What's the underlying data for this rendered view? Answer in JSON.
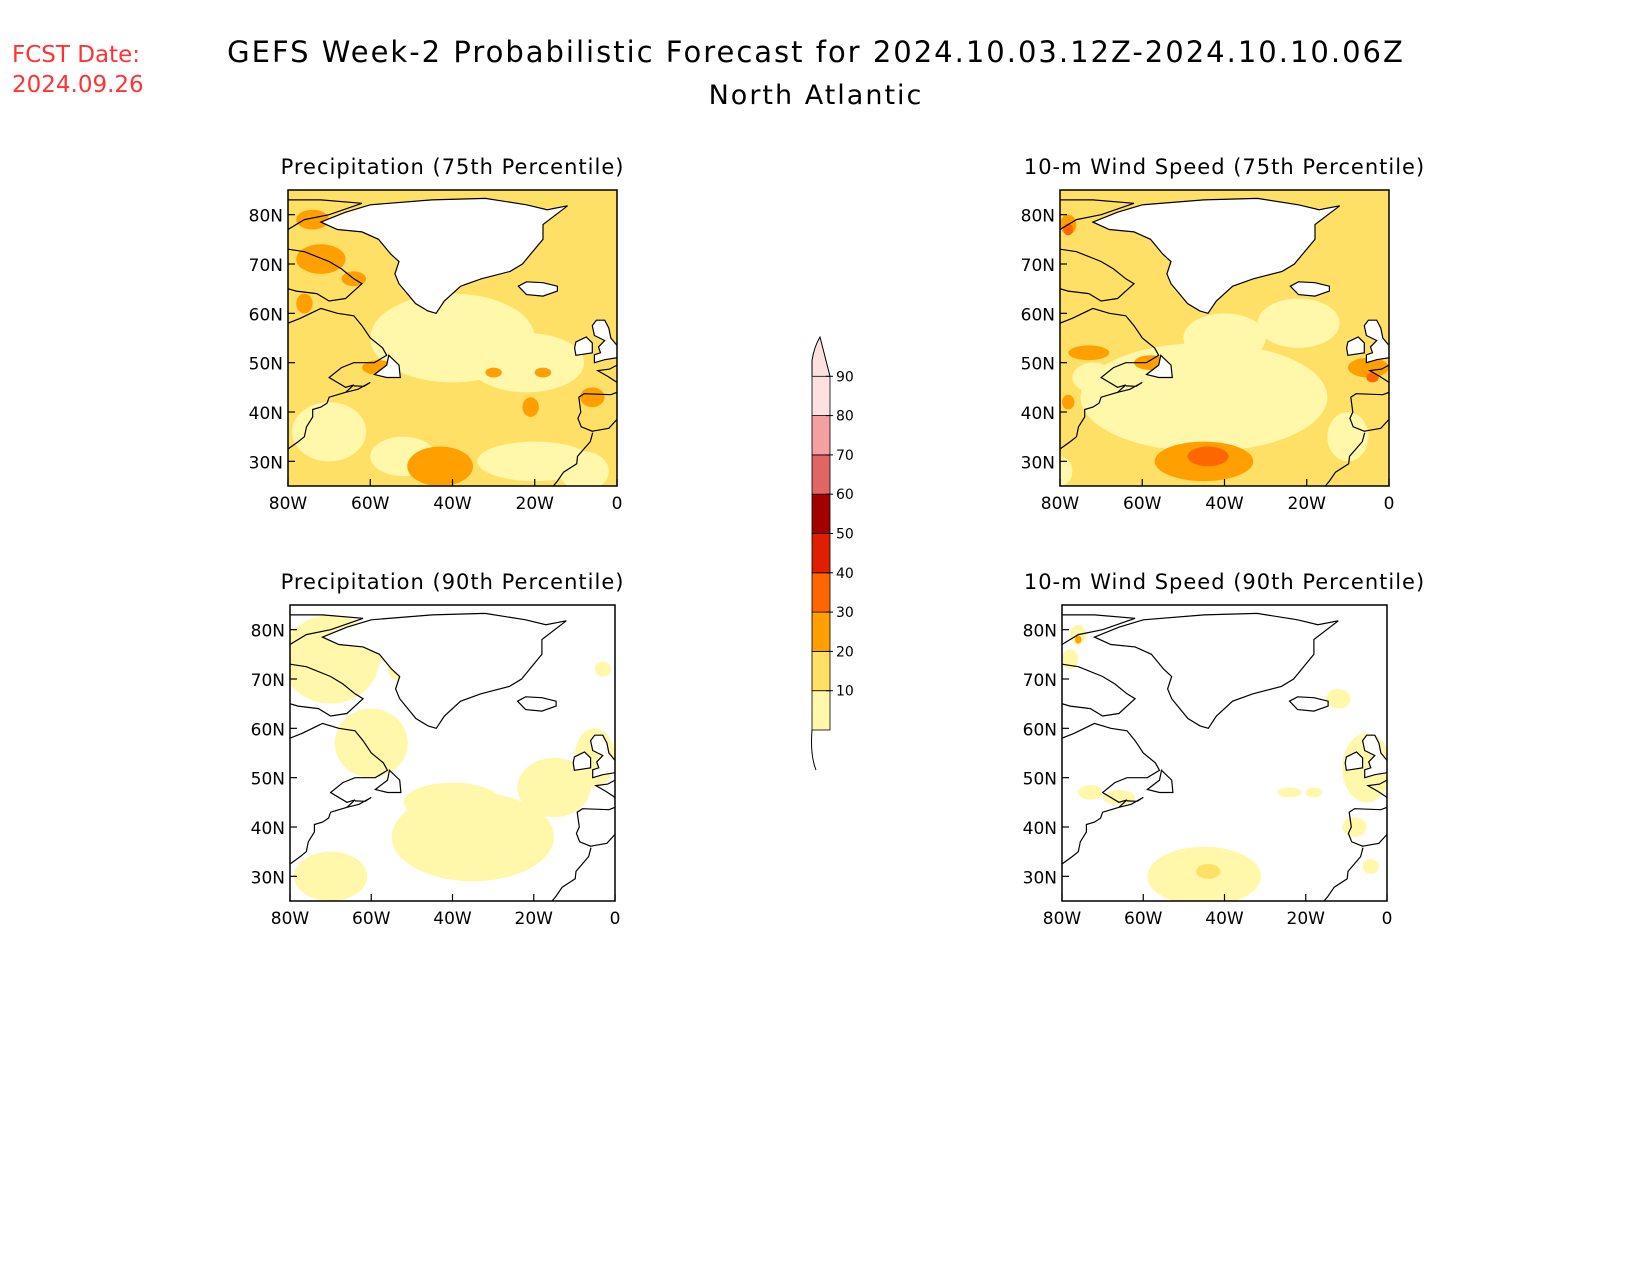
{
  "header": {
    "fcst_label": "FCST Date:",
    "fcst_date": "2024.09.26",
    "title": "GEFS Week-2 Probabilistic Forecast for 2024.10.03.12Z-2024.10.10.06Z",
    "region": "North Atlantic",
    "fcst_color": "#ff3333"
  },
  "map_axes": {
    "lat_ticks": [
      "80N",
      "70N",
      "60N",
      "50N",
      "40N",
      "30N"
    ],
    "lon_ticks": [
      "80W",
      "60W",
      "40W",
      "20W",
      "0"
    ],
    "lat_range": [
      25,
      85
    ],
    "lon_range": [
      -80,
      0
    ]
  },
  "panels": [
    {
      "id": "precip-75",
      "title": "Precipitation (75th Percentile)",
      "variable": "precipitation",
      "percentile": 75
    },
    {
      "id": "wind-75",
      "title": "10-m Wind Speed (75th Percentile)",
      "variable": "wind",
      "percentile": 75
    },
    {
      "id": "precip-90",
      "title": "Precipitation (90th Percentile)",
      "variable": "precipitation",
      "percentile": 90
    },
    {
      "id": "wind-90",
      "title": "10-m Wind Speed (90th Percentile)",
      "variable": "wind",
      "percentile": 90
    }
  ],
  "colorbar": {
    "levels": [
      "10",
      "20",
      "30",
      "40",
      "50",
      "60",
      "70",
      "80",
      "90"
    ],
    "colors": [
      "#fff7aa",
      "#ffe066",
      "#ffa000",
      "#ff6600",
      "#e01e00",
      "#a50000",
      "#e06666",
      "#f2a0a0",
      "#fde0e0"
    ]
  }
}
